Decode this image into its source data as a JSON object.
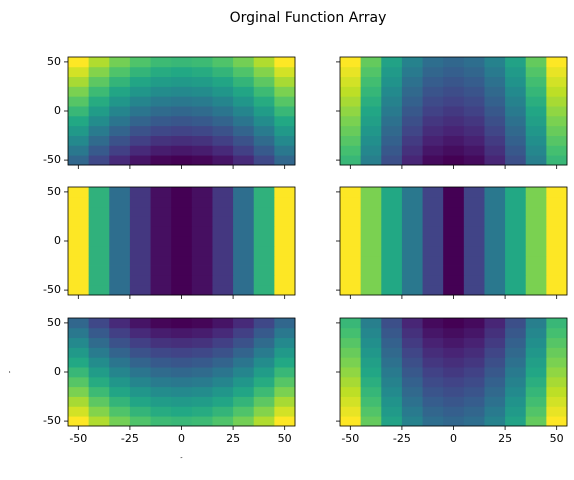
{
  "title": "Orginal Function Array",
  "chart_data": [
    {
      "type": "heatmap",
      "colormap": "viridis",
      "xlim": [
        -55,
        55
      ],
      "ylim": [
        -55,
        55
      ],
      "xticks": [
        -50,
        -25,
        0,
        25,
        50
      ],
      "yticks": [
        -50,
        0,
        50
      ],
      "xticklabels": false,
      "yticklabels": true,
      "x": [
        -50,
        -40,
        -30,
        -20,
        -10,
        0,
        10,
        20,
        30,
        40,
        50
      ],
      "y": [
        -50,
        -40,
        -30,
        -20,
        -10,
        0,
        10,
        20,
        30,
        40,
        50
      ],
      "z": [
        [
          0,
          -18,
          -32,
          -42,
          -48,
          -50,
          -48,
          -42,
          -32,
          -18,
          0
        ],
        [
          10,
          -8,
          -22,
          -32,
          -38,
          -40,
          -38,
          -32,
          -22,
          -8,
          10
        ],
        [
          20,
          2,
          -12,
          -22,
          -28,
          -30,
          -28,
          -22,
          -12,
          2,
          20
        ],
        [
          30,
          12,
          -2,
          -12,
          -18,
          -20,
          -18,
          -12,
          -2,
          12,
          30
        ],
        [
          40,
          22,
          8,
          -2,
          -8,
          -10,
          -8,
          -2,
          8,
          22,
          40
        ],
        [
          50,
          32,
          18,
          8,
          2,
          0,
          2,
          8,
          18,
          32,
          50
        ],
        [
          60,
          42,
          28,
          18,
          12,
          10,
          12,
          18,
          28,
          42,
          60
        ],
        [
          70,
          52,
          38,
          28,
          22,
          20,
          22,
          28,
          38,
          52,
          70
        ],
        [
          80,
          62,
          48,
          38,
          32,
          30,
          32,
          38,
          48,
          62,
          80
        ],
        [
          90,
          72,
          58,
          48,
          42,
          40,
          42,
          48,
          58,
          72,
          90
        ],
        [
          100,
          82,
          68,
          58,
          52,
          50,
          52,
          58,
          68,
          82,
          100
        ]
      ]
    },
    {
      "type": "heatmap",
      "colormap": "viridis",
      "xlim": [
        -55,
        55
      ],
      "ylim": [
        -55,
        55
      ],
      "xticks": [
        -50,
        -25,
        0,
        25,
        50
      ],
      "yticks": [
        -50,
        0,
        50
      ],
      "xticklabels": false,
      "yticklabels": false,
      "x": [
        -50,
        -40,
        -30,
        -20,
        -10,
        0,
        10,
        20,
        30,
        40,
        50
      ],
      "y": [
        -50,
        -40,
        -30,
        -20,
        -10,
        0,
        10,
        20,
        30,
        40,
        50
      ],
      "z": [
        [
          75,
          39,
          11,
          -9,
          -21,
          -25,
          -21,
          -9,
          11,
          39,
          75
        ],
        [
          80,
          44,
          16,
          -4,
          -16,
          -20,
          -16,
          -4,
          16,
          44,
          80
        ],
        [
          85,
          49,
          21,
          1,
          -11,
          -15,
          -11,
          1,
          21,
          49,
          85
        ],
        [
          90,
          54,
          26,
          6,
          -6,
          -10,
          -6,
          6,
          26,
          54,
          90
        ],
        [
          95,
          59,
          31,
          11,
          -1,
          -5,
          -1,
          11,
          31,
          59,
          95
        ],
        [
          100,
          64,
          36,
          16,
          4,
          0,
          4,
          16,
          36,
          64,
          100
        ],
        [
          105,
          69,
          41,
          21,
          9,
          5,
          9,
          21,
          41,
          69,
          105
        ],
        [
          110,
          74,
          46,
          26,
          14,
          10,
          14,
          26,
          46,
          74,
          110
        ],
        [
          115,
          79,
          51,
          31,
          19,
          15,
          19,
          31,
          51,
          79,
          115
        ],
        [
          120,
          84,
          56,
          36,
          24,
          20,
          24,
          36,
          56,
          84,
          120
        ],
        [
          125,
          89,
          61,
          41,
          29,
          25,
          29,
          41,
          61,
          89,
          125
        ]
      ]
    },
    {
      "type": "heatmap",
      "colormap": "viridis",
      "xlim": [
        -55,
        55
      ],
      "ylim": [
        -55,
        55
      ],
      "xticks": [
        -50,
        -25,
        0,
        25,
        50
      ],
      "yticks": [
        -50,
        0,
        50
      ],
      "xticklabels": false,
      "yticklabels": true,
      "x": [
        -50,
        -40,
        -30,
        -20,
        -10,
        0,
        10,
        20,
        30,
        40,
        50
      ],
      "y": [
        -50,
        -40,
        -30,
        -20,
        -10,
        0,
        10,
        20,
        30,
        40,
        50
      ],
      "z": [
        [
          50,
          32,
          18,
          8,
          2,
          0,
          2,
          8,
          18,
          32,
          50
        ],
        [
          50,
          32,
          18,
          8,
          2,
          0,
          2,
          8,
          18,
          32,
          50
        ],
        [
          50,
          32,
          18,
          8,
          2,
          0,
          2,
          8,
          18,
          32,
          50
        ],
        [
          50,
          32,
          18,
          8,
          2,
          0,
          2,
          8,
          18,
          32,
          50
        ],
        [
          50,
          32,
          18,
          8,
          2,
          0,
          2,
          8,
          18,
          32,
          50
        ],
        [
          50,
          32,
          18,
          8,
          2,
          0,
          2,
          8,
          18,
          32,
          50
        ],
        [
          50,
          32,
          18,
          8,
          2,
          0,
          2,
          8,
          18,
          32,
          50
        ],
        [
          50,
          32,
          18,
          8,
          2,
          0,
          2,
          8,
          18,
          32,
          50
        ],
        [
          50,
          32,
          18,
          8,
          2,
          0,
          2,
          8,
          18,
          32,
          50
        ],
        [
          50,
          32,
          18,
          8,
          2,
          0,
          2,
          8,
          18,
          32,
          50
        ],
        [
          50,
          32,
          18,
          8,
          2,
          0,
          2,
          8,
          18,
          32,
          50
        ]
      ]
    },
    {
      "type": "heatmap",
      "colormap": "viridis",
      "xlim": [
        -55,
        55
      ],
      "ylim": [
        -55,
        55
      ],
      "xticks": [
        -50,
        -25,
        0,
        25,
        50
      ],
      "yticks": [
        -50,
        0,
        50
      ],
      "xticklabels": false,
      "yticklabels": false,
      "x": [
        -50,
        -40,
        -30,
        -20,
        -10,
        0,
        10,
        20,
        30,
        40,
        50
      ],
      "y": [
        -50,
        -40,
        -30,
        -20,
        -10,
        0,
        10,
        20,
        30,
        40,
        50
      ],
      "z": [
        [
          50,
          40,
          30,
          20,
          10,
          0,
          10,
          20,
          30,
          40,
          50
        ],
        [
          50,
          40,
          30,
          20,
          10,
          0,
          10,
          20,
          30,
          40,
          50
        ],
        [
          50,
          40,
          30,
          20,
          10,
          0,
          10,
          20,
          30,
          40,
          50
        ],
        [
          50,
          40,
          30,
          20,
          10,
          0,
          10,
          20,
          30,
          40,
          50
        ],
        [
          50,
          40,
          30,
          20,
          10,
          0,
          10,
          20,
          30,
          40,
          50
        ],
        [
          50,
          40,
          30,
          20,
          10,
          0,
          10,
          20,
          30,
          40,
          50
        ],
        [
          50,
          40,
          30,
          20,
          10,
          0,
          10,
          20,
          30,
          40,
          50
        ],
        [
          50,
          40,
          30,
          20,
          10,
          0,
          10,
          20,
          30,
          40,
          50
        ],
        [
          50,
          40,
          30,
          20,
          10,
          0,
          10,
          20,
          30,
          40,
          50
        ],
        [
          50,
          40,
          30,
          20,
          10,
          0,
          10,
          20,
          30,
          40,
          50
        ],
        [
          50,
          40,
          30,
          20,
          10,
          0,
          10,
          20,
          30,
          40,
          50
        ]
      ]
    },
    {
      "type": "heatmap",
      "colormap": "viridis",
      "xlim": [
        -55,
        55
      ],
      "ylim": [
        -55,
        55
      ],
      "xticks": [
        -50,
        -25,
        0,
        25,
        50
      ],
      "yticks": [
        -50,
        0,
        50
      ],
      "xticklabels": true,
      "yticklabels": true,
      "xlabel": "″",
      "ylabel": "″",
      "x": [
        -50,
        -40,
        -30,
        -20,
        -10,
        0,
        10,
        20,
        30,
        40,
        50
      ],
      "y": [
        -50,
        -40,
        -30,
        -20,
        -10,
        0,
        10,
        20,
        30,
        40,
        50
      ],
      "z": [
        [
          100,
          82,
          68,
          58,
          52,
          50,
          52,
          58,
          68,
          82,
          100
        ],
        [
          90,
          72,
          58,
          48,
          42,
          40,
          42,
          48,
          58,
          72,
          90
        ],
        [
          80,
          62,
          48,
          38,
          32,
          30,
          32,
          38,
          48,
          62,
          80
        ],
        [
          70,
          52,
          38,
          28,
          22,
          20,
          22,
          28,
          38,
          52,
          70
        ],
        [
          60,
          42,
          28,
          18,
          12,
          10,
          12,
          18,
          28,
          42,
          60
        ],
        [
          50,
          32,
          18,
          8,
          2,
          0,
          2,
          8,
          18,
          32,
          50
        ],
        [
          40,
          22,
          8,
          -2,
          -8,
          -10,
          -8,
          -2,
          8,
          22,
          40
        ],
        [
          30,
          12,
          -2,
          -12,
          -18,
          -20,
          -18,
          -12,
          -2,
          12,
          30
        ],
        [
          20,
          2,
          -12,
          -22,
          -28,
          -30,
          -28,
          -22,
          -12,
          2,
          20
        ],
        [
          10,
          -8,
          -22,
          -32,
          -38,
          -40,
          -38,
          -32,
          -22,
          -8,
          10
        ],
        [
          0,
          -18,
          -32,
          -42,
          -48,
          -50,
          -48,
          -42,
          -32,
          -18,
          0
        ]
      ]
    },
    {
      "type": "heatmap",
      "colormap": "viridis",
      "xlim": [
        -55,
        55
      ],
      "ylim": [
        -55,
        55
      ],
      "xticks": [
        -50,
        -25,
        0,
        25,
        50
      ],
      "yticks": [
        -50,
        0,
        50
      ],
      "xticklabels": true,
      "yticklabels": false,
      "x": [
        -50,
        -40,
        -30,
        -20,
        -10,
        0,
        10,
        20,
        30,
        40,
        50
      ],
      "y": [
        -50,
        -40,
        -30,
        -20,
        -10,
        0,
        10,
        20,
        30,
        40,
        50
      ],
      "z": [
        [
          125,
          89,
          61,
          41,
          29,
          25,
          29,
          41,
          61,
          89,
          125
        ],
        [
          120,
          84,
          56,
          36,
          24,
          20,
          24,
          36,
          56,
          84,
          120
        ],
        [
          115,
          79,
          51,
          31,
          19,
          15,
          19,
          31,
          51,
          79,
          115
        ],
        [
          110,
          74,
          46,
          26,
          14,
          10,
          14,
          26,
          46,
          74,
          110
        ],
        [
          105,
          69,
          41,
          21,
          9,
          5,
          9,
          21,
          41,
          69,
          105
        ],
        [
          100,
          64,
          36,
          16,
          4,
          0,
          4,
          16,
          36,
          64,
          100
        ],
        [
          95,
          59,
          31,
          11,
          -1,
          -5,
          -1,
          11,
          31,
          59,
          95
        ],
        [
          90,
          54,
          26,
          6,
          -6,
          -10,
          -6,
          6,
          26,
          54,
          90
        ],
        [
          85,
          49,
          21,
          1,
          -11,
          -15,
          -11,
          1,
          21,
          49,
          85
        ],
        [
          80,
          44,
          16,
          -4,
          -16,
          -20,
          -16,
          -4,
          16,
          44,
          80
        ],
        [
          75,
          39,
          11,
          -9,
          -21,
          -25,
          -21,
          -9,
          11,
          39,
          75
        ]
      ]
    }
  ]
}
